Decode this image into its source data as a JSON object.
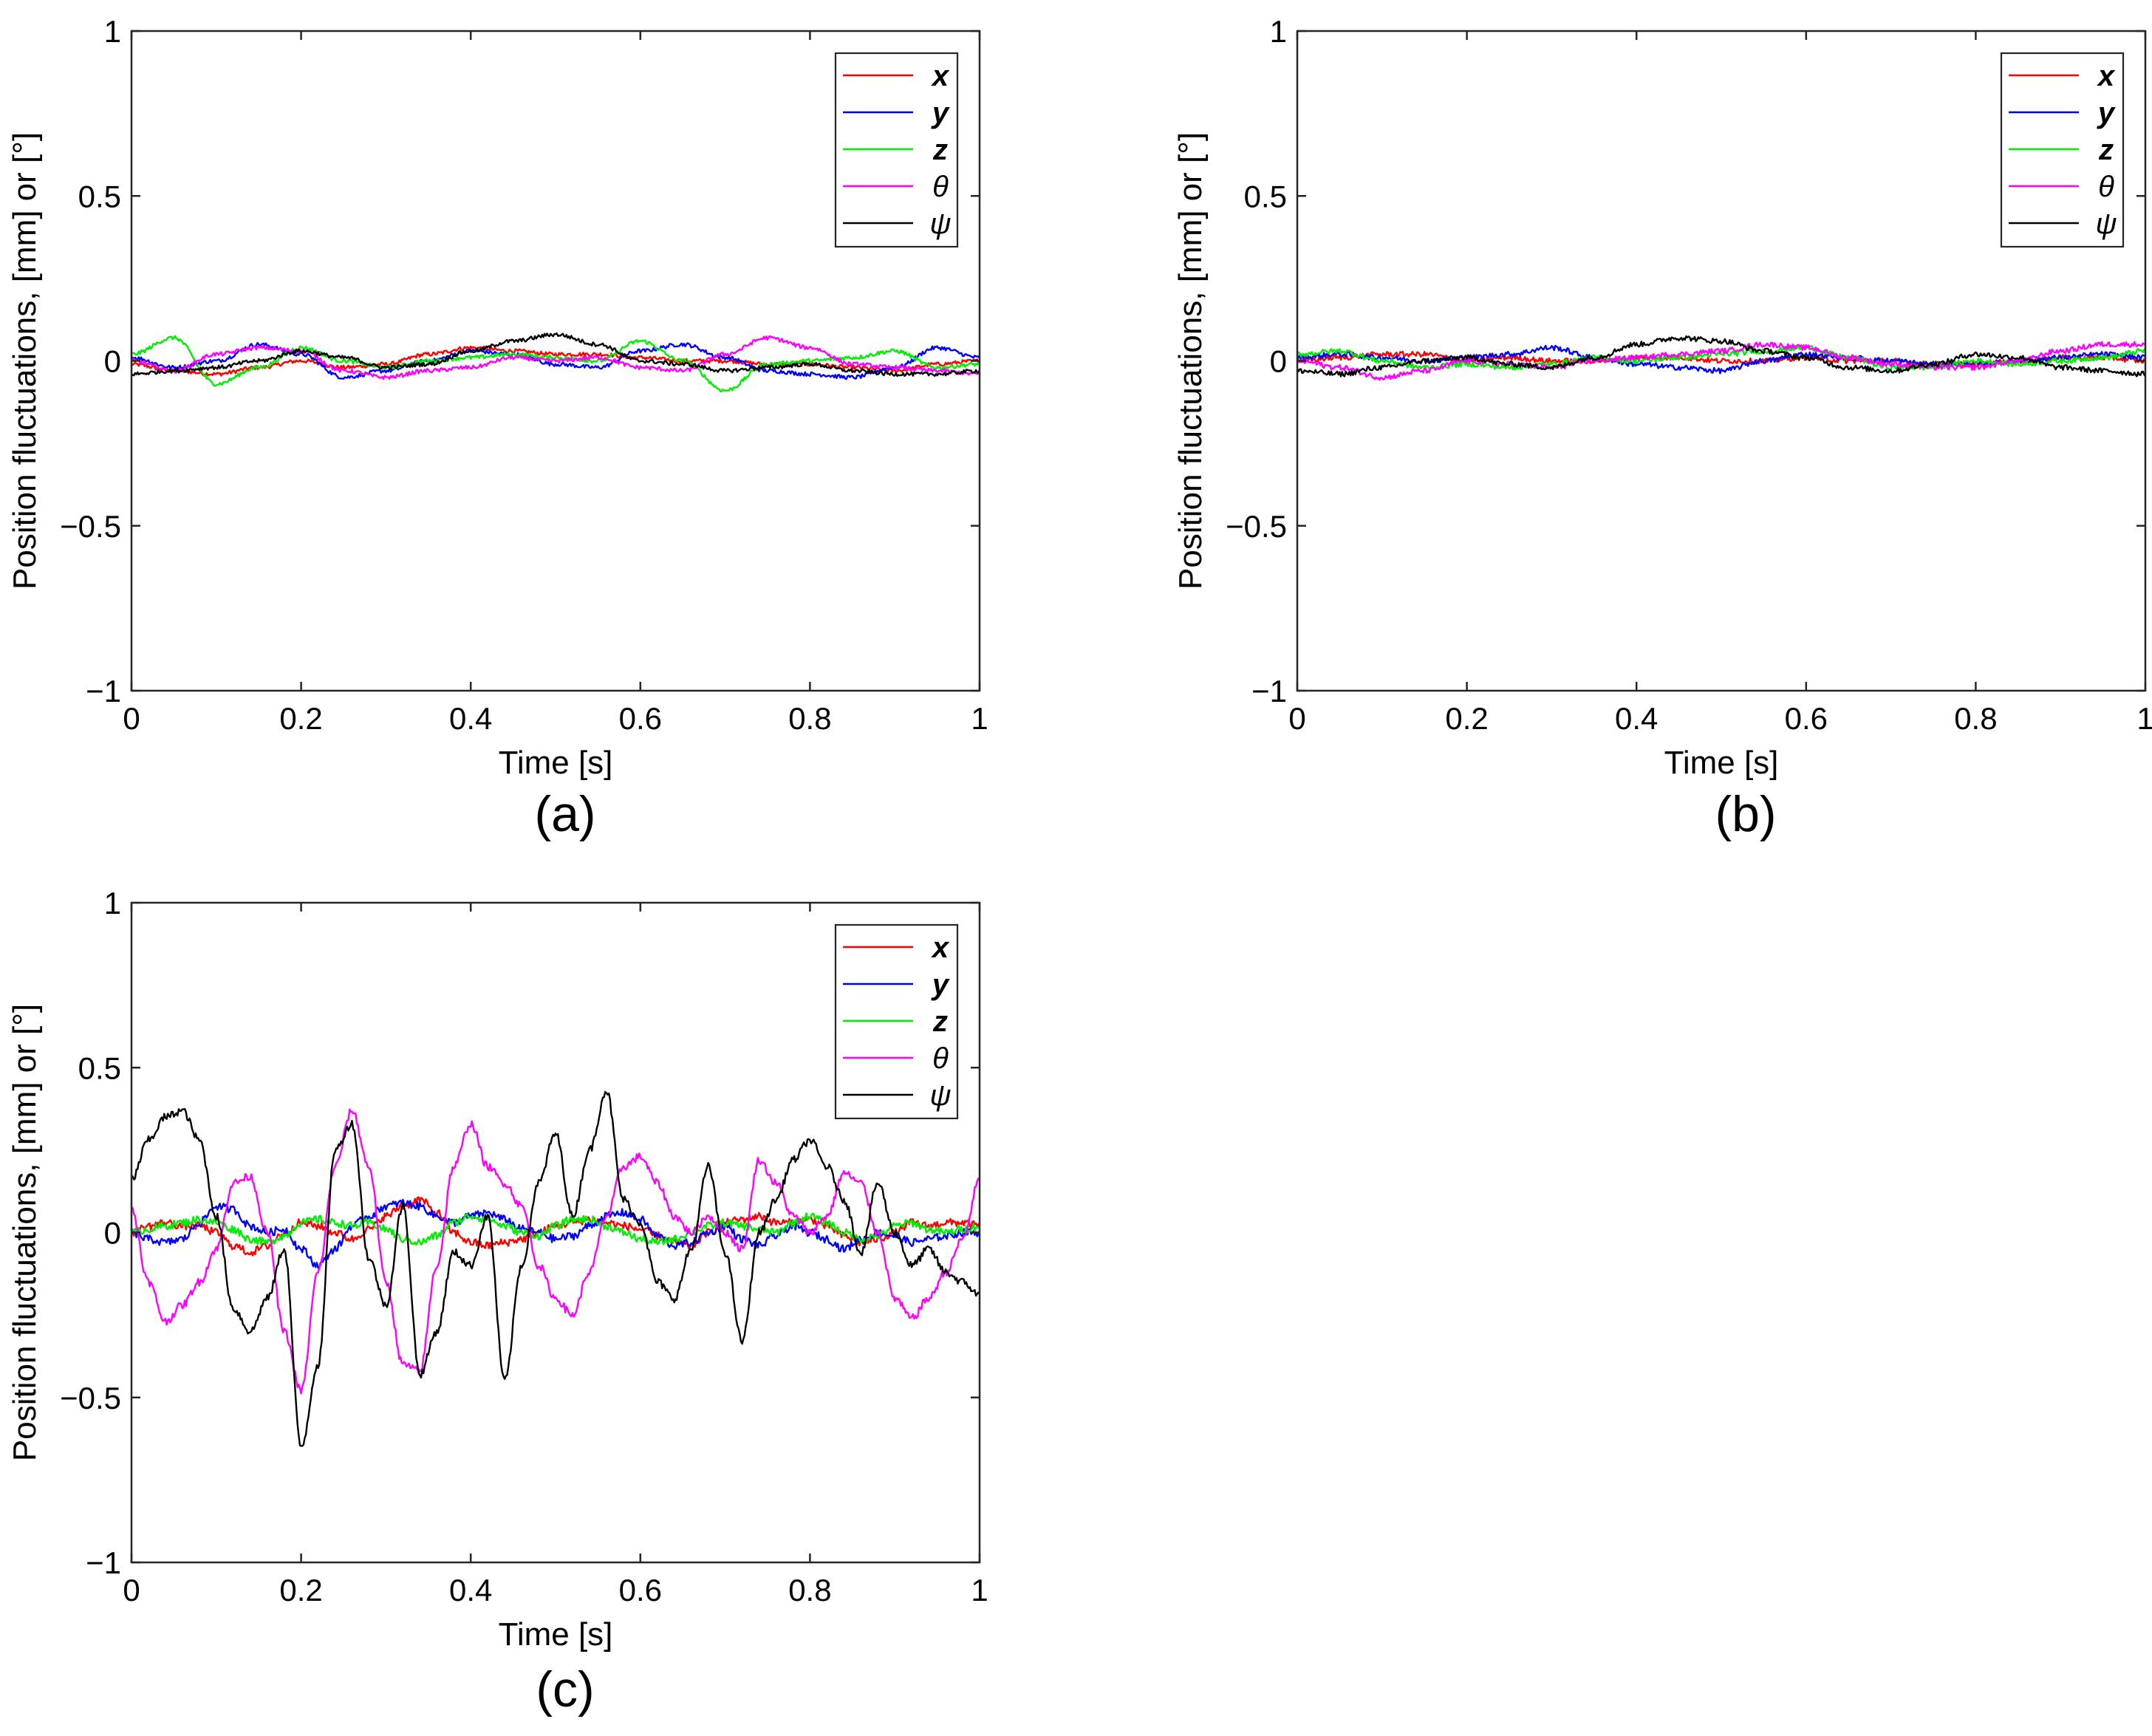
{
  "figure": {
    "panel_labels": [
      "(a)",
      "(b)",
      "(c)"
    ]
  },
  "colors": {
    "x": "#ff0000",
    "y": "#0000ff",
    "z": "#00ee00",
    "theta": "#ff00ff",
    "psi": "#000000",
    "axis": "#262626"
  },
  "chart_data": [
    {
      "type": "line",
      "panel": "(a)",
      "xlabel": "Time [s]",
      "ylabel": "Position fluctuations, [mm] or [°]",
      "xlim": [
        0,
        1
      ],
      "ylim": [
        -1,
        1
      ],
      "xticks": [
        0,
        0.2,
        0.4,
        0.6,
        0.8,
        1
      ],
      "xtick_labels": [
        "0",
        "0.2",
        "0.4",
        "0.6",
        "0.8",
        "1"
      ],
      "yticks": [
        -1,
        -0.5,
        0,
        0.5,
        1
      ],
      "ytick_labels": [
        "−1",
        "−0.5",
        "0",
        "0.5",
        "1"
      ],
      "legend_position": "top-right",
      "noise": 0.006,
      "x": [
        0,
        0.05,
        0.1,
        0.15,
        0.2,
        0.25,
        0.3,
        0.35,
        0.4,
        0.45,
        0.5,
        0.55,
        0.6,
        0.65,
        0.7,
        0.75,
        0.8,
        0.85,
        0.9,
        0.95,
        1.0
      ],
      "series": [
        {
          "name": "x",
          "color": "#ff0000",
          "values": [
            -0.01,
            -0.03,
            -0.04,
            -0.02,
            0.0,
            -0.02,
            -0.01,
            0.02,
            0.04,
            0.03,
            0.02,
            0.02,
            0.01,
            0.0,
            0.0,
            -0.01,
            -0.01,
            -0.02,
            -0.03,
            -0.01,
            0.0
          ]
        },
        {
          "name": "y",
          "color": "#0000ff",
          "values": [
            0.01,
            -0.02,
            0.0,
            0.05,
            0.02,
            -0.05,
            -0.03,
            0.0,
            0.03,
            0.02,
            -0.01,
            -0.02,
            0.03,
            0.05,
            0.01,
            -0.03,
            -0.04,
            -0.05,
            -0.02,
            0.04,
            0.01
          ]
        },
        {
          "name": "z",
          "color": "#00ee00",
          "values": [
            0.02,
            0.07,
            -0.07,
            -0.02,
            0.04,
            0.0,
            -0.02,
            0.0,
            0.01,
            0.02,
            0.01,
            0.0,
            0.06,
            0.0,
            -0.09,
            -0.01,
            0.0,
            0.01,
            0.03,
            -0.02,
            -0.01
          ]
        },
        {
          "name": "θ",
          "color": "#ff00ff",
          "values": [
            0.0,
            -0.03,
            0.02,
            0.04,
            0.03,
            -0.03,
            -0.05,
            -0.03,
            -0.02,
            0.01,
            0.0,
            0.01,
            -0.02,
            -0.03,
            0.02,
            0.07,
            0.04,
            -0.01,
            -0.02,
            -0.03,
            -0.04
          ]
        },
        {
          "name": "ψ",
          "color": "#000000",
          "values": [
            -0.04,
            -0.03,
            -0.02,
            0.0,
            0.03,
            0.01,
            -0.02,
            -0.01,
            0.03,
            0.06,
            0.08,
            0.05,
            0.0,
            -0.01,
            -0.03,
            -0.02,
            -0.01,
            -0.03,
            -0.04,
            -0.04,
            -0.03
          ]
        }
      ]
    },
    {
      "type": "line",
      "panel": "(b)",
      "xlabel": "Time [s]",
      "ylabel": "Position fluctuations, [mm] or [°]",
      "xlim": [
        0,
        1
      ],
      "ylim": [
        -1,
        1
      ],
      "xticks": [
        0,
        0.2,
        0.4,
        0.6,
        0.8,
        1
      ],
      "xtick_labels": [
        "0",
        "0.2",
        "0.4",
        "0.6",
        "0.8",
        "1"
      ],
      "yticks": [
        -1,
        -0.5,
        0,
        0.5,
        1
      ],
      "ytick_labels": [
        "−1",
        "−0.5",
        "0",
        "0.5",
        "1"
      ],
      "legend_position": "top-right",
      "noise": 0.008,
      "x": [
        0,
        0.05,
        0.1,
        0.15,
        0.2,
        0.25,
        0.3,
        0.35,
        0.4,
        0.45,
        0.5,
        0.55,
        0.6,
        0.65,
        0.7,
        0.75,
        0.8,
        0.85,
        0.9,
        0.95,
        1.0
      ],
      "series": [
        {
          "name": "x",
          "color": "#ff0000",
          "values": [
            0.0,
            0.01,
            0.02,
            0.02,
            0.0,
            0.01,
            0.0,
            0.0,
            0.01,
            0.01,
            0.0,
            0.0,
            0.01,
            0.0,
            0.0,
            -0.01,
            -0.01,
            0.0,
            0.01,
            0.01,
            0.0
          ]
        },
        {
          "name": "y",
          "color": "#0000ff",
          "values": [
            0.01,
            0.02,
            0.01,
            0.0,
            0.01,
            0.02,
            0.04,
            0.01,
            -0.01,
            -0.02,
            -0.03,
            0.0,
            0.02,
            0.01,
            0.0,
            -0.01,
            -0.01,
            0.0,
            0.01,
            0.02,
            0.01
          ]
        },
        {
          "name": "z",
          "color": "#00ee00",
          "values": [
            0.02,
            0.03,
            0.0,
            -0.02,
            -0.01,
            -0.02,
            -0.01,
            0.01,
            0.0,
            0.01,
            0.02,
            0.03,
            0.04,
            0.01,
            -0.02,
            -0.02,
            0.0,
            -0.01,
            0.0,
            0.01,
            0.03
          ]
        },
        {
          "name": "θ",
          "color": "#ff00ff",
          "values": [
            0.0,
            -0.02,
            -0.05,
            -0.03,
            0.0,
            -0.01,
            -0.02,
            0.0,
            0.01,
            0.02,
            0.03,
            0.05,
            0.04,
            0.01,
            -0.01,
            -0.02,
            -0.02,
            0.0,
            0.03,
            0.05,
            0.05
          ]
        },
        {
          "name": "ψ",
          "color": "#000000",
          "values": [
            -0.03,
            -0.04,
            -0.02,
            0.0,
            0.01,
            -0.01,
            -0.02,
            0.01,
            0.05,
            0.07,
            0.06,
            0.03,
            0.01,
            -0.02,
            -0.03,
            -0.01,
            0.02,
            0.01,
            -0.02,
            -0.03,
            -0.04
          ]
        }
      ]
    },
    {
      "type": "line",
      "panel": "(c)",
      "xlabel": "Time [s]",
      "ylabel": "Position fluctuations, [mm] or [°]",
      "xlim": [
        0,
        1
      ],
      "ylim": [
        -1,
        1
      ],
      "xticks": [
        0,
        0.2,
        0.4,
        0.6,
        0.8,
        1
      ],
      "xtick_labels": [
        "0",
        "0.2",
        "0.4",
        "0.6",
        "0.8",
        "1"
      ],
      "yticks": [
        -1,
        -0.5,
        0,
        0.5,
        1
      ],
      "ytick_labels": [
        "−1",
        "−0.5",
        "0",
        "0.5",
        "1"
      ],
      "legend_position": "top-right",
      "noise": 0.012,
      "x": [
        0,
        0.02,
        0.04,
        0.06,
        0.08,
        0.1,
        0.12,
        0.14,
        0.16,
        0.18,
        0.2,
        0.22,
        0.24,
        0.26,
        0.28,
        0.3,
        0.32,
        0.34,
        0.36,
        0.38,
        0.4,
        0.42,
        0.44,
        0.46,
        0.48,
        0.5,
        0.52,
        0.54,
        0.56,
        0.58,
        0.6,
        0.62,
        0.64,
        0.66,
        0.68,
        0.7,
        0.72,
        0.74,
        0.76,
        0.78,
        0.8,
        0.82,
        0.84,
        0.86,
        0.88,
        0.9,
        0.92,
        0.94,
        0.96,
        0.98,
        1.0
      ],
      "series": [
        {
          "name": "x",
          "color": "#ff0000",
          "values": [
            0.0,
            0.02,
            0.03,
            0.02,
            0.02,
            0.0,
            -0.04,
            -0.06,
            -0.04,
            0.0,
            0.03,
            0.02,
            0.0,
            -0.02,
            0.01,
            0.05,
            0.08,
            0.1,
            0.06,
            0.0,
            -0.03,
            -0.04,
            -0.03,
            -0.02,
            0.0,
            0.02,
            0.03,
            0.04,
            0.03,
            0.02,
            0.01,
            -0.01,
            -0.03,
            -0.04,
            0.0,
            0.03,
            0.04,
            0.05,
            0.03,
            0.03,
            0.04,
            0.02,
            -0.01,
            -0.03,
            -0.02,
            0.0,
            0.03,
            0.02,
            0.03,
            0.03,
            0.02
          ]
        },
        {
          "name": "y",
          "color": "#0000ff",
          "values": [
            0.0,
            -0.02,
            -0.03,
            -0.02,
            0.03,
            0.08,
            0.07,
            0.02,
            0.0,
            0.01,
            -0.05,
            -0.1,
            -0.05,
            0.02,
            0.05,
            0.08,
            0.09,
            0.08,
            0.05,
            0.03,
            0.05,
            0.06,
            0.04,
            0.01,
            0.0,
            -0.02,
            -0.01,
            0.02,
            0.05,
            0.06,
            0.04,
            -0.01,
            -0.04,
            -0.03,
            0.0,
            0.02,
            -0.02,
            -0.04,
            -0.01,
            0.02,
            0.0,
            -0.02,
            -0.05,
            -0.02,
            0.0,
            -0.01,
            -0.03,
            -0.02,
            -0.01,
            0.0,
            0.0
          ]
        },
        {
          "name": "z",
          "color": "#00ee00",
          "values": [
            0.0,
            0.01,
            0.02,
            0.03,
            0.04,
            0.03,
            0.01,
            -0.02,
            -0.03,
            -0.01,
            0.03,
            0.04,
            0.03,
            0.02,
            0.03,
            0.01,
            -0.02,
            -0.03,
            -0.01,
            0.03,
            0.05,
            0.04,
            0.02,
            0.0,
            -0.01,
            0.02,
            0.04,
            0.04,
            0.02,
            0.0,
            -0.02,
            -0.03,
            -0.02,
            0.0,
            0.02,
            0.03,
            0.02,
            0.01,
            0.0,
            0.03,
            0.05,
            0.03,
            0.0,
            -0.02,
            -0.01,
            0.02,
            0.03,
            0.01,
            0.0,
            0.01,
            0.02
          ]
        },
        {
          "name": "θ",
          "color": "#ff00ff",
          "values": [
            0.07,
            -0.15,
            -0.27,
            -0.22,
            -0.15,
            -0.05,
            0.15,
            0.17,
            0.0,
            -0.3,
            -0.48,
            -0.12,
            0.2,
            0.37,
            0.2,
            -0.15,
            -0.4,
            -0.42,
            -0.1,
            0.2,
            0.33,
            0.2,
            0.15,
            0.08,
            -0.1,
            -0.2,
            -0.25,
            -0.12,
            0.05,
            0.2,
            0.23,
            0.15,
            0.05,
            0.0,
            0.05,
            0.0,
            -0.05,
            0.22,
            0.15,
            0.05,
            0.0,
            0.05,
            0.18,
            0.15,
            0.0,
            -0.2,
            -0.26,
            -0.2,
            -0.12,
            -0.02,
            0.16
          ]
        },
        {
          "name": "ψ",
          "color": "#000000",
          "values": [
            0.16,
            0.28,
            0.35,
            0.37,
            0.28,
            0.05,
            -0.23,
            -0.3,
            -0.2,
            -0.05,
            -0.65,
            -0.4,
            0.25,
            0.33,
            -0.08,
            -0.22,
            0.08,
            -0.43,
            -0.3,
            -0.06,
            -0.1,
            0.05,
            -0.45,
            -0.1,
            0.15,
            0.3,
            0.05,
            0.25,
            0.43,
            0.1,
            0.03,
            -0.15,
            -0.2,
            -0.05,
            0.2,
            -0.06,
            -0.33,
            0.0,
            0.1,
            0.22,
            0.28,
            0.2,
            0.1,
            -0.06,
            0.15,
            0.0,
            -0.1,
            -0.05,
            -0.12,
            -0.15,
            -0.19
          ]
        }
      ]
    }
  ]
}
